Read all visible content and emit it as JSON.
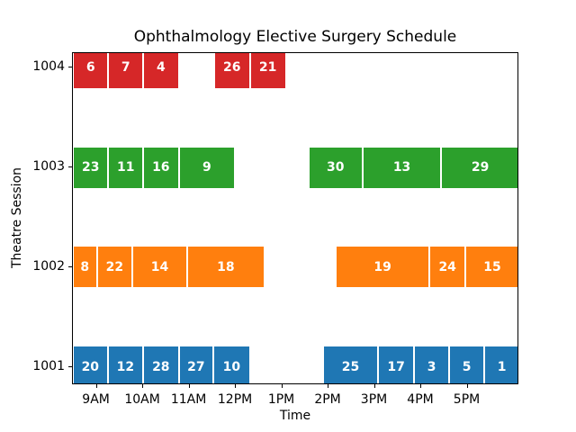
{
  "chart_data": {
    "type": "gantt",
    "title": "Ophthalmology Elective Surgery Schedule",
    "xlabel": "Time",
    "ylabel": "Theatre Session",
    "background": "#ffffff",
    "x_axis": {
      "unit": "minutes_after_midnight",
      "min": 509,
      "max": 1087,
      "ticks": [
        {
          "t": 540,
          "label": "9AM"
        },
        {
          "t": 600,
          "label": "10AM"
        },
        {
          "t": 660,
          "label": "11AM"
        },
        {
          "t": 720,
          "label": "12PM"
        },
        {
          "t": 780,
          "label": "1PM"
        },
        {
          "t": 840,
          "label": "2PM"
        },
        {
          "t": 900,
          "label": "3PM"
        },
        {
          "t": 960,
          "label": "4PM"
        },
        {
          "t": 1020,
          "label": "5PM"
        }
      ]
    },
    "y_categories_top_to_bottom": [
      "1004",
      "1003",
      "1002",
      "1001"
    ],
    "colors": {
      "session_1001": "#1f77b4",
      "session_1002": "#ff7f0e",
      "session_1003": "#2ca02c",
      "session_1004": "#d62728"
    },
    "rows": [
      {
        "session": "1004",
        "color": "#d62728",
        "cases": [
          {
            "label": "6",
            "start": 509,
            "end": 555
          },
          {
            "label": "7",
            "start": 555,
            "end": 600
          },
          {
            "label": "4",
            "start": 600,
            "end": 646
          },
          {
            "label": "26",
            "start": 692,
            "end": 738
          },
          {
            "label": "21",
            "start": 738,
            "end": 785
          }
        ]
      },
      {
        "session": "1003",
        "color": "#2ca02c",
        "cases": [
          {
            "label": "23",
            "start": 509,
            "end": 555
          },
          {
            "label": "11",
            "start": 555,
            "end": 600
          },
          {
            "label": "16",
            "start": 600,
            "end": 646
          },
          {
            "label": "9",
            "start": 646,
            "end": 719
          },
          {
            "label": "30",
            "start": 814,
            "end": 884
          },
          {
            "label": "13",
            "start": 884,
            "end": 986
          },
          {
            "label": "29",
            "start": 986,
            "end": 1087
          }
        ]
      },
      {
        "session": "1002",
        "color": "#ff7f0e",
        "cases": [
          {
            "label": "8",
            "start": 509,
            "end": 540
          },
          {
            "label": "22",
            "start": 540,
            "end": 586
          },
          {
            "label": "14",
            "start": 586,
            "end": 657
          },
          {
            "label": "18",
            "start": 657,
            "end": 757
          },
          {
            "label": "19",
            "start": 849,
            "end": 971
          },
          {
            "label": "24",
            "start": 971,
            "end": 1017
          },
          {
            "label": "15",
            "start": 1017,
            "end": 1087
          }
        ]
      },
      {
        "session": "1001",
        "color": "#1f77b4",
        "cases": [
          {
            "label": "20",
            "start": 509,
            "end": 554
          },
          {
            "label": "12",
            "start": 554,
            "end": 600
          },
          {
            "label": "28",
            "start": 600,
            "end": 646
          },
          {
            "label": "27",
            "start": 646,
            "end": 691
          },
          {
            "label": "10",
            "start": 691,
            "end": 738
          },
          {
            "label": "25",
            "start": 833,
            "end": 904
          },
          {
            "label": "17",
            "start": 904,
            "end": 951
          },
          {
            "label": "3",
            "start": 951,
            "end": 996
          },
          {
            "label": "5",
            "start": 996,
            "end": 1042
          },
          {
            "label": "1",
            "start": 1042,
            "end": 1087
          }
        ]
      }
    ]
  }
}
